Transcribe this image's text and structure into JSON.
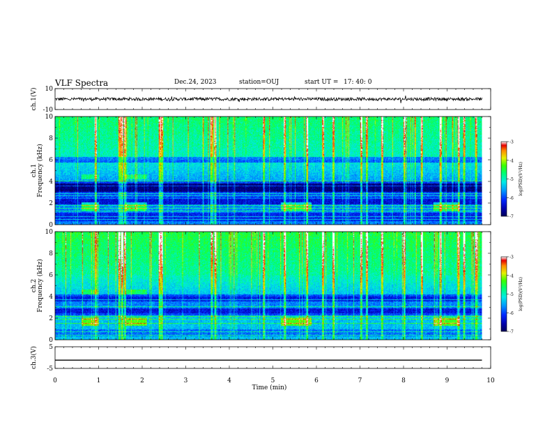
{
  "header": {
    "title": "VLF Spectra",
    "date": "Dec.24, 2023",
    "station": "station=OUJ",
    "start_label": "start  UT =",
    "start_time": "17: 40: 0"
  },
  "colors": {
    "text": "#000000",
    "trace": "#000000",
    "colorbar": [
      "#000080",
      "#0000ff",
      "#0080ff",
      "#00ffff",
      "#00ff00",
      "#ffff00",
      "#ff8000",
      "#ff0000",
      "#ffffff"
    ]
  },
  "chart_data": [
    {
      "type": "line",
      "name": "ch1-waveform",
      "ylabel": "ch.1(V)",
      "ylim": [
        -10,
        10
      ],
      "yticks": [
        "10",
        "-10"
      ],
      "xlim": [
        0,
        10
      ],
      "baseline": 0,
      "noise_amplitude": 1.5,
      "data_end": 9.8
    },
    {
      "type": "heatmap",
      "name": "ch1-spectrogram",
      "ylabel_top": "ch.1",
      "ylabel": "Frequency  (kHz)",
      "ylim": [
        0,
        10
      ],
      "yticks": [
        "0",
        "2",
        "4",
        "6",
        "8",
        "10"
      ],
      "xlim": [
        0,
        10
      ],
      "data_end": 9.8,
      "colorbar": {
        "label": "log(PSD)(V²/Hz)",
        "range": [
          -7,
          -3
        ],
        "ticks": [
          "-3",
          "-4",
          "-5",
          "-6",
          "-7"
        ]
      },
      "features": [
        {
          "x": [
            0.6,
            1.0
          ],
          "y": 1.7,
          "label": "emission"
        },
        {
          "x": [
            1.6,
            2.1
          ],
          "y": 1.7,
          "label": "emission"
        },
        {
          "x": [
            5.2,
            5.9
          ],
          "y": 1.7,
          "label": "emission"
        },
        {
          "x": [
            8.7,
            9.3
          ],
          "y": 1.7,
          "label": "emission"
        }
      ]
    },
    {
      "type": "heatmap",
      "name": "ch2-spectrogram",
      "ylabel_top": "ch.2",
      "ylabel": "Frequency  (kHz)",
      "ylim": [
        0,
        10
      ],
      "yticks": [
        "0",
        "2",
        "4",
        "6",
        "8",
        "10"
      ],
      "xlim": [
        0,
        10
      ],
      "data_end": 9.8,
      "colorbar": {
        "label": "log(PSD)(V²/Hz)",
        "range": [
          -7,
          -3
        ],
        "ticks": [
          "-3",
          "-4",
          "-5",
          "-6",
          "-7"
        ]
      }
    },
    {
      "type": "line",
      "name": "ch3-waveform",
      "ylabel": "ch.3(V)",
      "ylim": [
        -5,
        5
      ],
      "yticks": [
        "5",
        "-5"
      ],
      "xlim": [
        0,
        10
      ],
      "baseline": -1.2,
      "data_end": 9.8,
      "xlabel": "Time  (min)",
      "xticks": [
        "0",
        "1",
        "2",
        "3",
        "4",
        "5",
        "6",
        "7",
        "8",
        "9",
        "10"
      ]
    }
  ]
}
